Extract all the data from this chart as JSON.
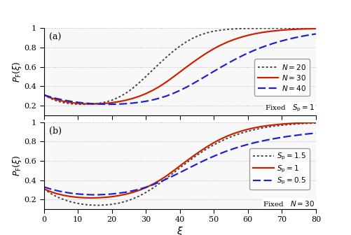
{
  "xi": [
    0,
    2,
    4,
    6,
    8,
    10,
    12,
    14,
    16,
    18,
    20,
    22,
    24,
    26,
    28,
    30,
    32,
    34,
    36,
    38,
    40,
    42,
    44,
    46,
    48,
    50,
    52,
    54,
    56,
    58,
    60,
    62,
    64,
    66,
    68,
    70,
    72,
    74,
    76,
    78,
    80
  ],
  "ylabel": "$P_{\\mathrm{F}}(\\xi)$",
  "xlabel": "$\\xi$",
  "xlim": [
    0,
    80
  ],
  "ylim": [
    0.1,
    1.0
  ],
  "yticks": [
    0.2,
    0.4,
    0.6,
    0.8,
    1.0
  ],
  "xticks": [
    0,
    10,
    20,
    30,
    40,
    50,
    60,
    70,
    80
  ],
  "legend_a_lines": [
    "$N = 20$",
    "$N = 30$",
    "$N = 40$"
  ],
  "legend_a_fixed": "Fixed   $S_\\mathrm{p} = 1$",
  "legend_b_lines": [
    "$S_\\mathrm{p} = 1.5$",
    "$S_\\mathrm{p} = 1$",
    "$S_\\mathrm{p} = 0.5$"
  ],
  "legend_b_fixed": "Fixed   $N = 30$",
  "color_dotted": "#444444",
  "color_solid": "#cc2200",
  "color_dashed": "#2222cc",
  "lw_dotted": 1.4,
  "lw_solid": 1.6,
  "lw_dashed": 1.6,
  "grid_color": "#bbbbbb",
  "bg_color": "#f8f8f8",
  "curve_a_N20": [
    0.31,
    0.272,
    0.245,
    0.228,
    0.218,
    0.213,
    0.212,
    0.215,
    0.222,
    0.235,
    0.255,
    0.285,
    0.325,
    0.375,
    0.435,
    0.5,
    0.568,
    0.635,
    0.7,
    0.76,
    0.815,
    0.862,
    0.9,
    0.93,
    0.953,
    0.969,
    0.98,
    0.988,
    0.993,
    0.996,
    0.997,
    0.998,
    0.999,
    0.999,
    1.0,
    1.0,
    1.0,
    1.0,
    1.0,
    1.0,
    1.0
  ],
  "curve_a_N30": [
    0.31,
    0.28,
    0.258,
    0.242,
    0.23,
    0.222,
    0.218,
    0.216,
    0.218,
    0.222,
    0.229,
    0.24,
    0.254,
    0.272,
    0.295,
    0.323,
    0.357,
    0.397,
    0.443,
    0.494,
    0.547,
    0.6,
    0.651,
    0.7,
    0.746,
    0.788,
    0.825,
    0.857,
    0.884,
    0.907,
    0.926,
    0.942,
    0.955,
    0.965,
    0.973,
    0.98,
    0.985,
    0.989,
    0.992,
    0.994,
    0.996
  ],
  "curve_a_N40": [
    0.31,
    0.288,
    0.27,
    0.255,
    0.243,
    0.233,
    0.225,
    0.22,
    0.216,
    0.214,
    0.213,
    0.215,
    0.219,
    0.225,
    0.233,
    0.244,
    0.258,
    0.276,
    0.298,
    0.325,
    0.356,
    0.391,
    0.43,
    0.47,
    0.512,
    0.554,
    0.595,
    0.635,
    0.673,
    0.709,
    0.743,
    0.773,
    0.801,
    0.826,
    0.849,
    0.869,
    0.887,
    0.903,
    0.917,
    0.93,
    0.941
  ],
  "curve_b_Sp15": [
    0.31,
    0.262,
    0.225,
    0.197,
    0.175,
    0.159,
    0.148,
    0.142,
    0.14,
    0.143,
    0.15,
    0.162,
    0.18,
    0.204,
    0.235,
    0.273,
    0.317,
    0.365,
    0.418,
    0.472,
    0.527,
    0.581,
    0.633,
    0.681,
    0.726,
    0.766,
    0.802,
    0.834,
    0.862,
    0.886,
    0.906,
    0.923,
    0.938,
    0.95,
    0.96,
    0.968,
    0.975,
    0.98,
    0.985,
    0.988,
    0.991
  ],
  "curve_b_Sp1": [
    0.31,
    0.28,
    0.258,
    0.242,
    0.23,
    0.222,
    0.218,
    0.216,
    0.218,
    0.222,
    0.229,
    0.24,
    0.254,
    0.272,
    0.295,
    0.323,
    0.357,
    0.397,
    0.443,
    0.494,
    0.547,
    0.6,
    0.651,
    0.7,
    0.746,
    0.788,
    0.825,
    0.857,
    0.884,
    0.907,
    0.926,
    0.942,
    0.955,
    0.965,
    0.973,
    0.98,
    0.985,
    0.989,
    0.992,
    0.994,
    0.996
  ],
  "curve_b_Sp05": [
    0.33,
    0.308,
    0.29,
    0.276,
    0.265,
    0.257,
    0.252,
    0.249,
    0.249,
    0.252,
    0.257,
    0.265,
    0.275,
    0.289,
    0.306,
    0.327,
    0.352,
    0.38,
    0.411,
    0.444,
    0.478,
    0.514,
    0.549,
    0.584,
    0.617,
    0.648,
    0.677,
    0.704,
    0.728,
    0.75,
    0.77,
    0.788,
    0.804,
    0.818,
    0.831,
    0.843,
    0.854,
    0.863,
    0.872,
    0.88,
    0.887
  ]
}
